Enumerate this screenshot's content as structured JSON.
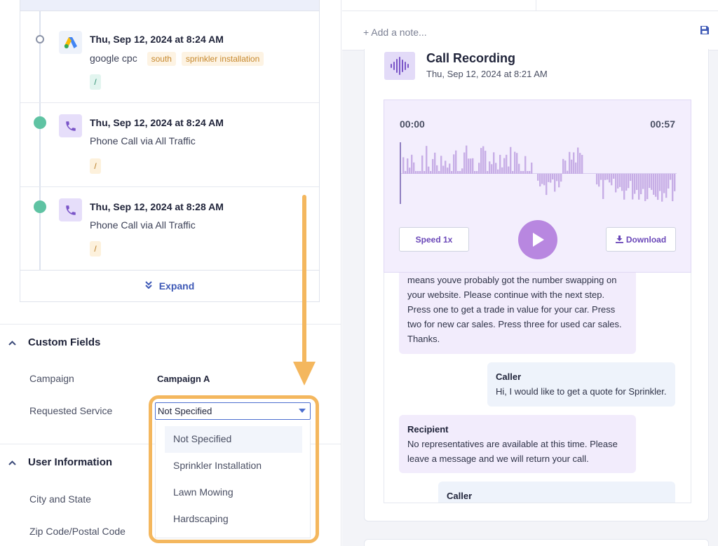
{
  "timeline": {
    "items": [
      {
        "title": "Thu, Sep 12, 2024 at 8:24 AM",
        "source": "google cpc",
        "tags": [
          "south",
          "sprinkler installation"
        ],
        "slash": "/"
      },
      {
        "title": "Thu, Sep 12, 2024 at 8:24 AM",
        "source": "Phone Call via All Traffic",
        "slash": "/"
      },
      {
        "title": "Thu, Sep 12, 2024 at 8:28 AM",
        "source": "Phone Call via All Traffic",
        "slash": "/"
      }
    ],
    "expand_label": "Expand"
  },
  "custom_fields": {
    "heading": "Custom Fields",
    "campaign_label": "Campaign",
    "campaign_value": "Campaign A",
    "requested_service_label": "Requested Service",
    "requested_service_value": "Not Specified",
    "options": [
      "Not Specified",
      "Sprinkler Installation",
      "Lawn Mowing",
      "Hardscaping"
    ]
  },
  "user_information": {
    "heading": "User Information",
    "city_label": "City and State",
    "zip_label": "Zip Code/Postal Code"
  },
  "notes": {
    "placeholder": "+ Add a note..."
  },
  "recording": {
    "title": "Call Recording",
    "date": "Thu, Sep 12, 2024 at 8:21 AM",
    "time_start": "00:00",
    "time_end": "00:57",
    "speed_label": "Speed 1x",
    "download_label": "Download"
  },
  "transcript": [
    {
      "speaker": "",
      "lines": [
        "means youve probably got the number swapping on",
        "your website. Please continue with the next step.",
        "Press one to get a trade in value for your car. Press",
        "two for new car sales. Press three for used car sales.",
        "Thanks."
      ]
    },
    {
      "speaker": "Caller",
      "lines": [
        "Hi, I would like to get a quote for Sprinkler."
      ]
    },
    {
      "speaker": "Recipient",
      "lines": [
        "No representatives are available at this time. Please",
        "leave a message and we will return your call."
      ]
    },
    {
      "speaker": "Caller",
      "lines": []
    }
  ],
  "colors": {
    "accent": "#4d6fcf",
    "highlight": "#f4b75e",
    "purple": "#b887e0",
    "green_dot": "#5fc3a3"
  }
}
